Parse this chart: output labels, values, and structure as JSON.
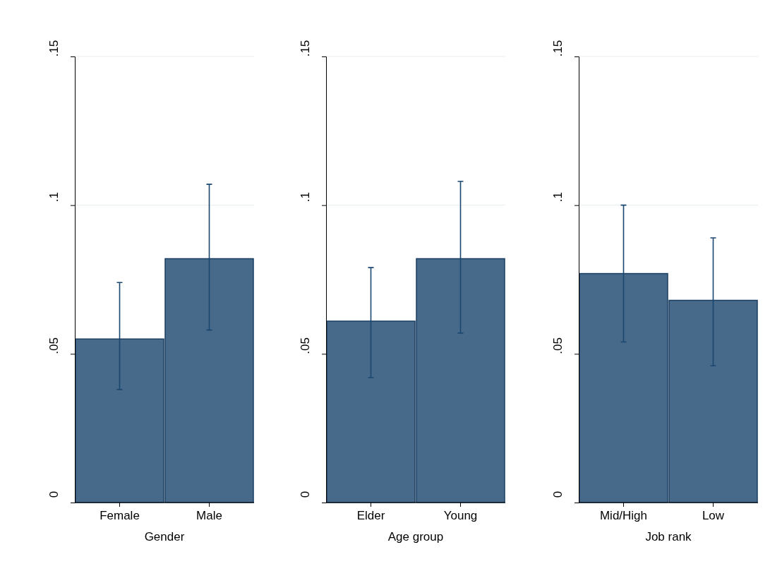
{
  "chart_data": [
    {
      "type": "bar",
      "xlabel": "Gender",
      "categories": [
        "Female",
        "Male"
      ],
      "values": [
        0.055,
        0.082
      ],
      "errors": [
        [
          0.038,
          0.074
        ],
        [
          0.058,
          0.107
        ]
      ],
      "color": "#486a8a",
      "ylim": [
        0,
        0.15
      ],
      "yticks": [
        {
          "value": 0,
          "label": "0"
        },
        {
          "value": 0.05,
          "label": ".05"
        },
        {
          "value": 0.1,
          "label": ".1"
        },
        {
          "value": 0.15,
          "label": ".15"
        }
      ],
      "grid": "y"
    },
    {
      "type": "bar",
      "xlabel": "Age group",
      "categories": [
        "Elder",
        "Young"
      ],
      "values": [
        0.061,
        0.082
      ],
      "errors": [
        [
          0.042,
          0.079
        ],
        [
          0.057,
          0.108
        ]
      ],
      "color": "#486a8a",
      "ylim": [
        0,
        0.15
      ],
      "yticks": [
        {
          "value": 0,
          "label": "0"
        },
        {
          "value": 0.05,
          "label": ".05"
        },
        {
          "value": 0.1,
          "label": ".1"
        },
        {
          "value": 0.15,
          "label": ".15"
        }
      ],
      "grid": "y"
    },
    {
      "type": "bar",
      "xlabel": "Job rank",
      "categories": [
        "Mid/High",
        "Low"
      ],
      "values": [
        0.077,
        0.068
      ],
      "errors": [
        [
          0.054,
          0.1
        ],
        [
          0.046,
          0.089
        ]
      ],
      "color": "#486a8a",
      "ylim": [
        0,
        0.15
      ],
      "yticks": [
        {
          "value": 0,
          "label": "0"
        },
        {
          "value": 0.05,
          "label": ".05"
        },
        {
          "value": 0.1,
          "label": ".1"
        },
        {
          "value": 0.15,
          "label": ".15"
        }
      ],
      "grid": "y"
    }
  ]
}
